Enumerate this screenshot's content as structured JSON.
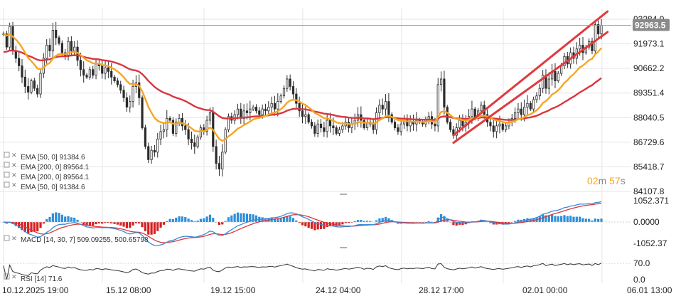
{
  "colors": {
    "candle": "#2b2b2b",
    "ema50": "#f5a623",
    "ema200": "#d9363e",
    "channel": "#e03a3e",
    "macd_line": "#3a8bd6",
    "signal_line": "#d9363e",
    "hist_pos": "#2f8fd8",
    "hist_neg": "#d62020",
    "rsi": "#333333",
    "grid": "#e6e6e6",
    "price_tag_bg": "#8a8a8a",
    "timer_orange": "#f5a623",
    "timer_gray": "#888888"
  },
  "legend": {
    "ema1": "EMA [50, 0] 91384.6",
    "ema2": "EMA [200, 0] 89564.1",
    "ema3": "EMA [200, 0] 89564.1",
    "ema4": "EMA [50, 0] 91384.6",
    "macd": "MACD [14, 30, 7] 509.09255, 500.65798",
    "rsi": "RSI [14] 71.6"
  },
  "timer": {
    "minutes": "02",
    "m_unit": "m",
    "seconds": "57",
    "s_unit": "s"
  },
  "current_price": "92963.5",
  "chart_data": [
    {
      "type": "candlestick",
      "price_ticks": [
        "93284.0",
        "91973.1",
        "90662.2",
        "89351.4",
        "88040.5",
        "86729.6",
        "85418.7",
        "84107.8"
      ],
      "y_range": [
        84107.8,
        93284.0
      ],
      "x_ticks": [
        "10.12.2025 19:00",
        "15.12 08:00",
        "19.12 15:00",
        "24.12 04:00",
        "28.12 17:00",
        "02.01 00:00",
        "06.01 13:00"
      ],
      "close": [
        92500,
        91800,
        92900,
        91600,
        91200,
        90800,
        90200,
        89700,
        89400,
        90000,
        89600,
        89300,
        90400,
        91200,
        91900,
        91600,
        92700,
        92300,
        92000,
        91500,
        91300,
        92100,
        91600,
        91800,
        91100,
        90600,
        90300,
        90200,
        90600,
        90300,
        90900,
        90800,
        90400,
        90700,
        90500,
        90200,
        90000,
        89800,
        89500,
        89100,
        88600,
        88900,
        89700,
        89900,
        89100,
        87500,
        86500,
        85800,
        86300,
        86200,
        86900,
        87300,
        87400,
        88000,
        87900,
        87200,
        87800,
        88000,
        87600,
        87400,
        86900,
        86700,
        86500,
        87000,
        87500,
        87300,
        87900,
        88300,
        86500,
        85600,
        85300,
        86200,
        87400,
        88100,
        87900,
        88200,
        88500,
        88000,
        88400,
        88300,
        88500,
        88600,
        88400,
        88200,
        88500,
        88400,
        88600,
        88800,
        88500,
        88900,
        89200,
        89600,
        90100,
        89700,
        89300,
        88800,
        88400,
        88100,
        88200,
        87800,
        87600,
        87200,
        87700,
        87500,
        87300,
        87900,
        87600,
        87500,
        87200,
        87400,
        87600,
        87800,
        87500,
        87700,
        87900,
        88200,
        87900,
        87500,
        87800,
        87700,
        87400,
        88300,
        88700,
        88500,
        88900,
        88200,
        87800,
        87500,
        87300,
        87700,
        87900,
        87600,
        87800,
        87700,
        87900,
        87800,
        87700,
        87900,
        88100,
        87700,
        87600,
        89800,
        90100,
        88600,
        87800,
        87400,
        87100,
        87500,
        87900,
        87600,
        87800,
        88100,
        88500,
        88000,
        88400,
        88700,
        88200,
        87800,
        87600,
        87300,
        87600,
        87700,
        87400,
        87600,
        87800,
        88000,
        88300,
        88500,
        88200,
        88600,
        88800,
        88500,
        89000,
        89200,
        89600,
        90300,
        89600,
        90100,
        90500,
        90000,
        90400,
        90800,
        91300,
        90900,
        91500,
        91200,
        91700,
        91900,
        91500,
        91800,
        92100,
        91600,
        93000,
        92500,
        92963.5
      ],
      "ema50_last": 91384.6,
      "ema200_last": 89564.1,
      "channel_lines": [
        {
          "from": [
            146,
            87100
          ],
          "to": [
            196,
            93700
          ]
        },
        {
          "from": [
            146,
            86700
          ],
          "to": [
            196,
            92600
          ]
        }
      ]
    },
    {
      "type": "macd",
      "params": [
        14,
        30,
        7
      ],
      "macd_last": 509.09255,
      "signal_last": 500.65798,
      "y_range": [
        -1052.37,
        1052.371
      ],
      "y_ticks": [
        "1052.371",
        "0.0000",
        "-1052.37"
      ]
    },
    {
      "type": "rsi",
      "period": 14,
      "last": 71.6,
      "y_range": [
        0,
        100
      ],
      "y_ticks": [
        "70.0",
        "0.0"
      ]
    }
  ]
}
